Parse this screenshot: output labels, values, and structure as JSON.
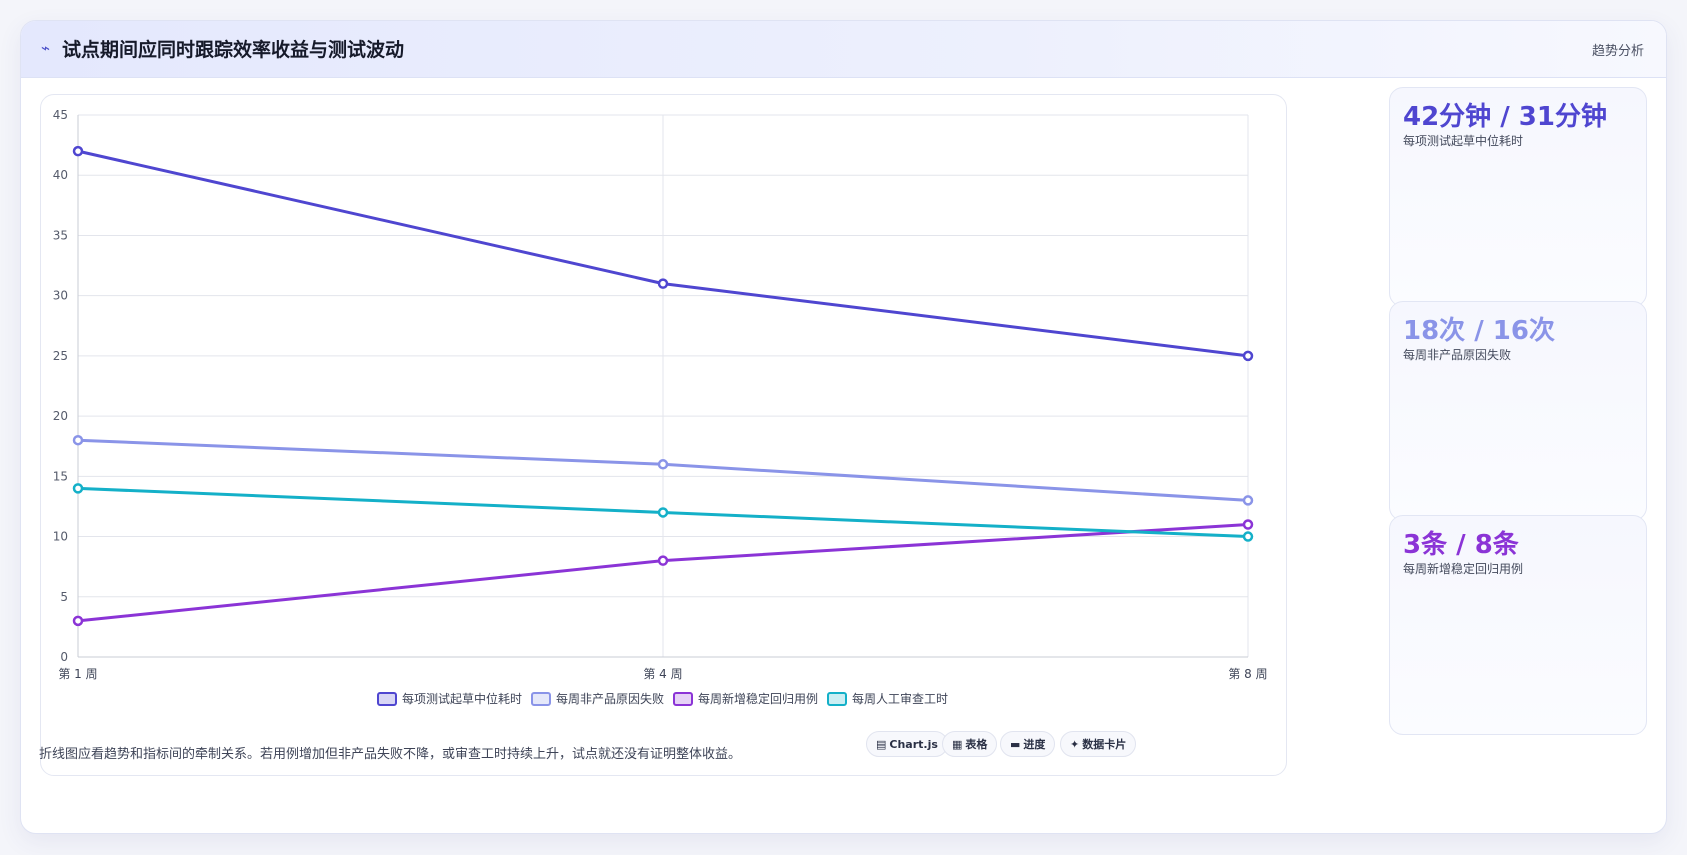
{
  "header": {
    "title": "试点期间应同时跟踪效率收益与测试波动",
    "tag": "趋势分析"
  },
  "kpis": [
    {
      "value": "42分钟 / 31分钟",
      "label": "每项测试起草中位耗时",
      "color": "#4f46d0"
    },
    {
      "value": "18次 / 16次",
      "label": "每周非产品原因失败",
      "color": "#8a94e8"
    },
    {
      "value": "3条 / 8条",
      "label": "每周新增稳定回归用例",
      "color": "#8b34d6"
    }
  ],
  "footnote": "折线图应看趋势和指标间的牵制关系。若用例增加但非产品失败不降，或审查工时持续上升，试点就还没有证明整体收益。",
  "view_buttons": [
    {
      "icon": "▤",
      "label": "Chart.js",
      "icon_name": "chart-icon"
    },
    {
      "icon": "▦",
      "label": "表格",
      "icon_name": "table-icon"
    },
    {
      "icon": "▬",
      "label": "进度",
      "icon_name": "progress-icon"
    },
    {
      "icon": "✦",
      "label": "数据卡片",
      "icon_name": "sparkle-icon"
    }
  ],
  "chart_data": {
    "type": "line",
    "categories": [
      "第 1 周",
      "第 4 周",
      "第 8 周"
    ],
    "ylim": [
      0,
      45
    ],
    "yticks": [
      0,
      5,
      10,
      15,
      20,
      25,
      30,
      35,
      40,
      45
    ],
    "grid": true,
    "legend_position": "bottom",
    "series": [
      {
        "name": "每项测试起草中位耗时",
        "values": [
          42,
          31,
          25
        ],
        "color": "#4f46d0"
      },
      {
        "name": "每周非产品原因失败",
        "values": [
          18,
          16,
          13
        ],
        "color": "#8a94e8"
      },
      {
        "name": "每周新增稳定回归用例",
        "values": [
          3,
          8,
          11
        ],
        "color": "#8b34d6"
      },
      {
        "name": "每周人工审查工时",
        "values": [
          14,
          12,
          10
        ],
        "color": "#14b0c8"
      }
    ]
  }
}
